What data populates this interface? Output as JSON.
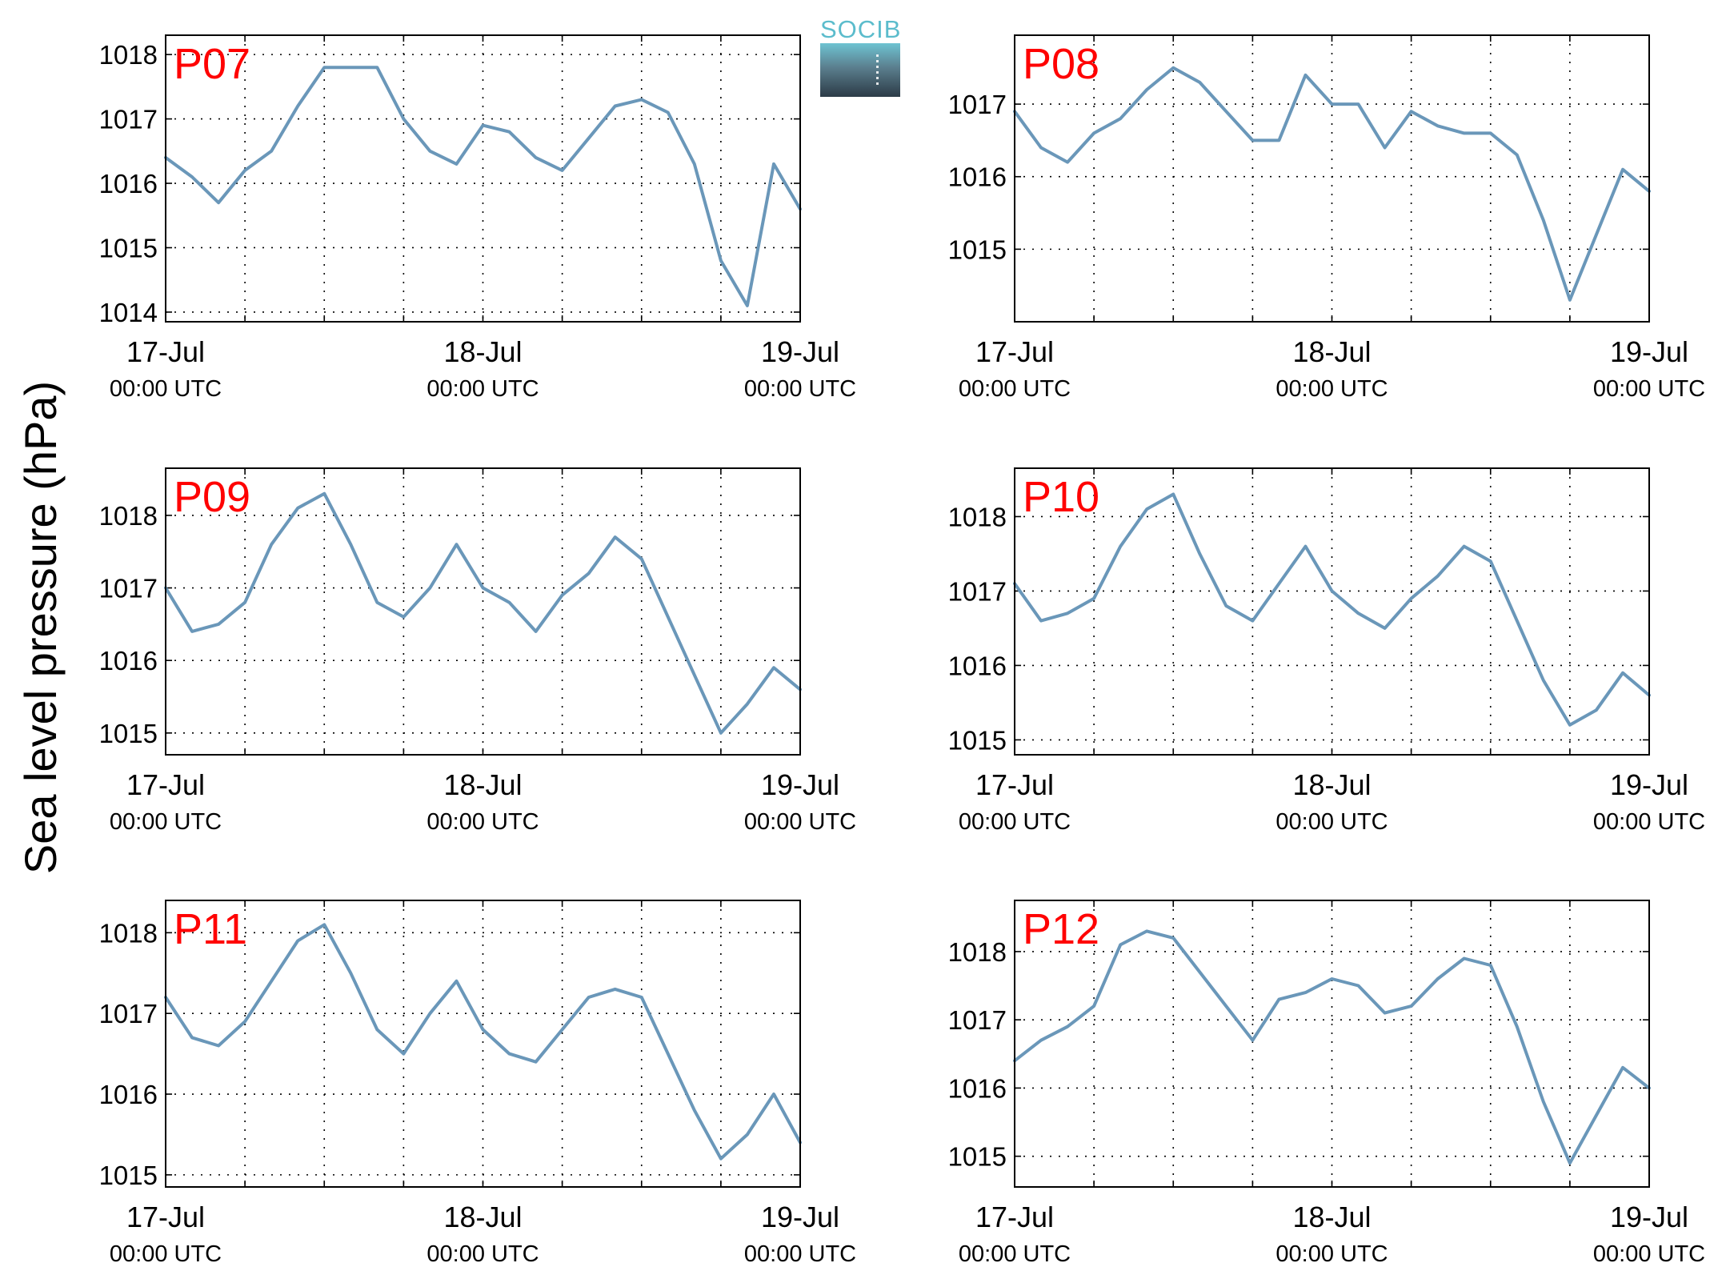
{
  "figure": {
    "ylabel": "Sea level pressure (hPa)",
    "logo_text": "SOCIB",
    "line_color": "#6a97b9",
    "label_color": "#ff0000",
    "grid": true
  },
  "chart_data": [
    {
      "type": "line",
      "title": "P07",
      "x_ticks": [
        {
          "date": "17-Jul",
          "time": "00:00 UTC"
        },
        {
          "date": "18-Jul",
          "time": "00:00 UTC"
        },
        {
          "date": "19-Jul",
          "time": "00:00 UTC"
        }
      ],
      "xlim": [
        "2015-07-17 00:00",
        "2015-07-19 00:00"
      ],
      "ylim": [
        1013.85,
        1018.3
      ],
      "yticks": [
        1014,
        1015,
        1016,
        1017,
        1018
      ],
      "series": [
        {
          "x": [
            "2015-07-17 00:00",
            "2015-07-17 02:00",
            "2015-07-17 04:00",
            "2015-07-17 06:00",
            "2015-07-17 08:00",
            "2015-07-17 10:00",
            "2015-07-17 12:00",
            "2015-07-17 14:00",
            "2015-07-17 16:00",
            "2015-07-17 18:00",
            "2015-07-17 20:00",
            "2015-07-17 22:00",
            "2015-07-18 00:00",
            "2015-07-18 02:00",
            "2015-07-18 04:00",
            "2015-07-18 06:00",
            "2015-07-18 08:00",
            "2015-07-18 10:00",
            "2015-07-18 12:00",
            "2015-07-18 14:00",
            "2015-07-18 16:00",
            "2015-07-18 18:00",
            "2015-07-18 20:00",
            "2015-07-18 22:00",
            "2015-07-19 00:00"
          ],
          "y": [
            1016.4,
            1016.1,
            1015.7,
            1016.2,
            1016.5,
            1017.2,
            1017.8,
            1017.8,
            1017.8,
            1017.0,
            1016.5,
            1016.3,
            1016.9,
            1016.8,
            1016.4,
            1016.2,
            1016.7,
            1017.2,
            1017.3,
            1017.1,
            1016.3,
            1014.8,
            1014.1,
            1016.3,
            1015.6
          ]
        }
      ]
    },
    {
      "type": "line",
      "title": "P08",
      "x_ticks": [
        {
          "date": "17-Jul",
          "time": "00:00 UTC"
        },
        {
          "date": "18-Jul",
          "time": "00:00 UTC"
        },
        {
          "date": "19-Jul",
          "time": "00:00 UTC"
        }
      ],
      "xlim": [
        "2015-07-17 00:00",
        "2015-07-19 00:00"
      ],
      "ylim": [
        1014.0,
        1017.95
      ],
      "yticks": [
        1015,
        1016,
        1017
      ],
      "series": [
        {
          "x": [
            "2015-07-17 00:00",
            "2015-07-17 02:00",
            "2015-07-17 04:00",
            "2015-07-17 06:00",
            "2015-07-17 08:00",
            "2015-07-17 10:00",
            "2015-07-17 12:00",
            "2015-07-17 14:00",
            "2015-07-17 16:00",
            "2015-07-17 18:00",
            "2015-07-17 20:00",
            "2015-07-17 22:00",
            "2015-07-18 00:00",
            "2015-07-18 02:00",
            "2015-07-18 04:00",
            "2015-07-18 06:00",
            "2015-07-18 08:00",
            "2015-07-18 10:00",
            "2015-07-18 12:00",
            "2015-07-18 14:00",
            "2015-07-18 16:00",
            "2015-07-18 18:00",
            "2015-07-18 20:00",
            "2015-07-18 22:00",
            "2015-07-19 00:00"
          ],
          "y": [
            1016.9,
            1016.4,
            1016.2,
            1016.6,
            1016.8,
            1017.2,
            1017.5,
            1017.3,
            1016.9,
            1016.5,
            1016.5,
            1017.4,
            1017.0,
            1017.0,
            1016.4,
            1016.9,
            1016.7,
            1016.6,
            1016.6,
            1016.3,
            1015.4,
            1014.3,
            1015.2,
            1016.1,
            1015.8
          ]
        }
      ]
    },
    {
      "type": "line",
      "title": "P09",
      "x_ticks": [
        {
          "date": "17-Jul",
          "time": "00:00 UTC"
        },
        {
          "date": "18-Jul",
          "time": "00:00 UTC"
        },
        {
          "date": "19-Jul",
          "time": "00:00 UTC"
        }
      ],
      "xlim": [
        "2015-07-17 00:00",
        "2015-07-19 00:00"
      ],
      "ylim": [
        1014.7,
        1018.65
      ],
      "yticks": [
        1015,
        1016,
        1017,
        1018
      ],
      "series": [
        {
          "x": [
            "2015-07-17 00:00",
            "2015-07-17 02:00",
            "2015-07-17 04:00",
            "2015-07-17 06:00",
            "2015-07-17 08:00",
            "2015-07-17 10:00",
            "2015-07-17 12:00",
            "2015-07-17 14:00",
            "2015-07-17 16:00",
            "2015-07-17 18:00",
            "2015-07-17 20:00",
            "2015-07-17 22:00",
            "2015-07-18 00:00",
            "2015-07-18 02:00",
            "2015-07-18 04:00",
            "2015-07-18 06:00",
            "2015-07-18 08:00",
            "2015-07-18 10:00",
            "2015-07-18 12:00",
            "2015-07-18 14:00",
            "2015-07-18 16:00",
            "2015-07-18 18:00",
            "2015-07-18 20:00",
            "2015-07-18 22:00",
            "2015-07-19 00:00"
          ],
          "y": [
            1017.0,
            1016.4,
            1016.5,
            1016.8,
            1017.6,
            1018.1,
            1018.3,
            1017.6,
            1016.8,
            1016.6,
            1017.0,
            1017.6,
            1017.0,
            1016.8,
            1016.4,
            1016.9,
            1017.2,
            1017.7,
            1017.4,
            1016.6,
            1015.8,
            1015.0,
            1015.4,
            1015.9,
            1015.6
          ]
        }
      ]
    },
    {
      "type": "line",
      "title": "P10",
      "x_ticks": [
        {
          "date": "17-Jul",
          "time": "00:00 UTC"
        },
        {
          "date": "18-Jul",
          "time": "00:00 UTC"
        },
        {
          "date": "19-Jul",
          "time": "00:00 UTC"
        }
      ],
      "xlim": [
        "2015-07-17 00:00",
        "2015-07-19 00:00"
      ],
      "ylim": [
        1014.8,
        1018.65
      ],
      "yticks": [
        1015,
        1016,
        1017,
        1018
      ],
      "series": [
        {
          "x": [
            "2015-07-17 00:00",
            "2015-07-17 02:00",
            "2015-07-17 04:00",
            "2015-07-17 06:00",
            "2015-07-17 08:00",
            "2015-07-17 10:00",
            "2015-07-17 12:00",
            "2015-07-17 14:00",
            "2015-07-17 16:00",
            "2015-07-17 18:00",
            "2015-07-17 20:00",
            "2015-07-17 22:00",
            "2015-07-18 00:00",
            "2015-07-18 02:00",
            "2015-07-18 04:00",
            "2015-07-18 06:00",
            "2015-07-18 08:00",
            "2015-07-18 10:00",
            "2015-07-18 12:00",
            "2015-07-18 14:00",
            "2015-07-18 16:00",
            "2015-07-18 18:00",
            "2015-07-18 20:00",
            "2015-07-18 22:00",
            "2015-07-19 00:00"
          ],
          "y": [
            1017.1,
            1016.6,
            1016.7,
            1016.9,
            1017.6,
            1018.1,
            1018.3,
            1017.5,
            1016.8,
            1016.6,
            1017.1,
            1017.6,
            1017.0,
            1016.7,
            1016.5,
            1016.9,
            1017.2,
            1017.6,
            1017.4,
            1016.6,
            1015.8,
            1015.2,
            1015.4,
            1015.9,
            1015.6
          ]
        }
      ]
    },
    {
      "type": "line",
      "title": "P11",
      "x_ticks": [
        {
          "date": "17-Jul",
          "time": "00:00 UTC"
        },
        {
          "date": "18-Jul",
          "time": "00:00 UTC"
        },
        {
          "date": "19-Jul",
          "time": "00:00 UTC"
        }
      ],
      "xlim": [
        "2015-07-17 00:00",
        "2015-07-19 00:00"
      ],
      "ylim": [
        1014.85,
        1018.4
      ],
      "yticks": [
        1015,
        1016,
        1017,
        1018
      ],
      "series": [
        {
          "x": [
            "2015-07-17 00:00",
            "2015-07-17 02:00",
            "2015-07-17 04:00",
            "2015-07-17 06:00",
            "2015-07-17 08:00",
            "2015-07-17 10:00",
            "2015-07-17 12:00",
            "2015-07-17 14:00",
            "2015-07-17 16:00",
            "2015-07-17 18:00",
            "2015-07-17 20:00",
            "2015-07-17 22:00",
            "2015-07-18 00:00",
            "2015-07-18 02:00",
            "2015-07-18 04:00",
            "2015-07-18 06:00",
            "2015-07-18 08:00",
            "2015-07-18 10:00",
            "2015-07-18 12:00",
            "2015-07-18 14:00",
            "2015-07-18 16:00",
            "2015-07-18 18:00",
            "2015-07-18 20:00",
            "2015-07-18 22:00",
            "2015-07-19 00:00"
          ],
          "y": [
            1017.2,
            1016.7,
            1016.6,
            1016.9,
            1017.4,
            1017.9,
            1018.1,
            1017.5,
            1016.8,
            1016.5,
            1017.0,
            1017.4,
            1016.8,
            1016.5,
            1016.4,
            1016.8,
            1017.2,
            1017.3,
            1017.2,
            1016.5,
            1015.8,
            1015.2,
            1015.5,
            1016.0,
            1015.4
          ]
        }
      ]
    },
    {
      "type": "line",
      "title": "P12",
      "x_ticks": [
        {
          "date": "17-Jul",
          "time": "00:00 UTC"
        },
        {
          "date": "18-Jul",
          "time": "00:00 UTC"
        },
        {
          "date": "19-Jul",
          "time": "00:00 UTC"
        }
      ],
      "xlim": [
        "2015-07-17 00:00",
        "2015-07-19 00:00"
      ],
      "ylim": [
        1014.55,
        1018.75
      ],
      "yticks": [
        1015,
        1016,
        1017,
        1018
      ],
      "series": [
        {
          "x": [
            "2015-07-17 00:00",
            "2015-07-17 02:00",
            "2015-07-17 04:00",
            "2015-07-17 06:00",
            "2015-07-17 08:00",
            "2015-07-17 10:00",
            "2015-07-17 12:00",
            "2015-07-17 14:00",
            "2015-07-17 16:00",
            "2015-07-17 18:00",
            "2015-07-17 20:00",
            "2015-07-17 22:00",
            "2015-07-18 00:00",
            "2015-07-18 02:00",
            "2015-07-18 04:00",
            "2015-07-18 06:00",
            "2015-07-18 08:00",
            "2015-07-18 10:00",
            "2015-07-18 12:00",
            "2015-07-18 14:00",
            "2015-07-18 16:00",
            "2015-07-18 18:00",
            "2015-07-18 20:00",
            "2015-07-18 22:00",
            "2015-07-19 00:00"
          ],
          "y": [
            1016.4,
            1016.7,
            1016.9,
            1017.2,
            1018.1,
            1018.3,
            1018.2,
            1017.7,
            1017.2,
            1016.7,
            1017.3,
            1017.4,
            1017.6,
            1017.5,
            1017.1,
            1017.2,
            1017.6,
            1017.9,
            1017.8,
            1016.9,
            1015.8,
            1014.9,
            1015.6,
            1016.3,
            1016.0
          ]
        }
      ]
    }
  ]
}
